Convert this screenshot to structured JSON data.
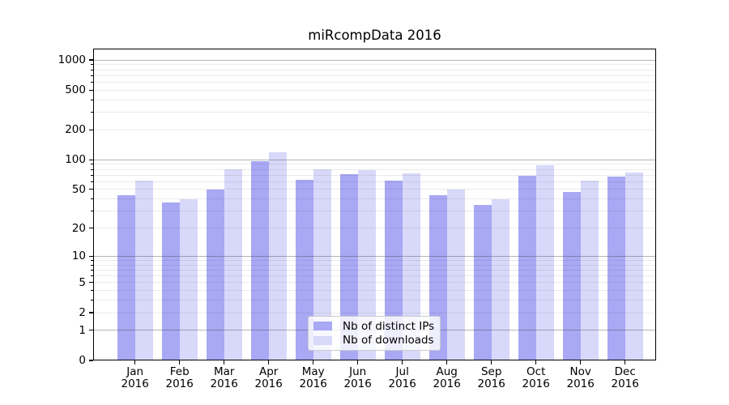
{
  "chart_data": {
    "type": "bar",
    "title": "miRcompData 2016",
    "yscale": "log1p",
    "ylim": [
      0,
      1310
    ],
    "yticks": [
      0,
      1,
      2,
      5,
      10,
      20,
      50,
      100,
      200,
      500,
      1000
    ],
    "major_gridlines": [
      1,
      10,
      100,
      1000
    ],
    "minor_gridlines": [
      2,
      3,
      4,
      5,
      6,
      7,
      8,
      9,
      20,
      30,
      40,
      50,
      60,
      70,
      80,
      90,
      200,
      300,
      400,
      500,
      600,
      700,
      800,
      900
    ],
    "grid": true,
    "legend_position": "lower center",
    "categories": [
      "Jan",
      "Feb",
      "Mar",
      "Apr",
      "May",
      "Jun",
      "Jul",
      "Aug",
      "Sep",
      "Oct",
      "Nov",
      "Dec"
    ],
    "year_label": "2016",
    "series": [
      {
        "name": "Nb of distinct IPs",
        "color": "#a8a8f4",
        "values": [
          44,
          37,
          50,
          97,
          63,
          71,
          62,
          44,
          35,
          69,
          47,
          68
        ]
      },
      {
        "name": "Nb of downloads",
        "color": "#d8d8fa",
        "values": [
          62,
          40,
          80,
          119,
          80,
          78,
          73,
          50,
          40,
          88,
          62,
          74
        ]
      }
    ]
  },
  "colors": {
    "background": "#ffffff",
    "axis": "#000000",
    "text": "#000000",
    "major_grid": "rgba(60,60,60,0.38)",
    "minor_grid": "rgba(60,60,60,0.10)",
    "legend_background": "rgba(255,255,255,0.8)",
    "legend_border": "#cccccc"
  }
}
